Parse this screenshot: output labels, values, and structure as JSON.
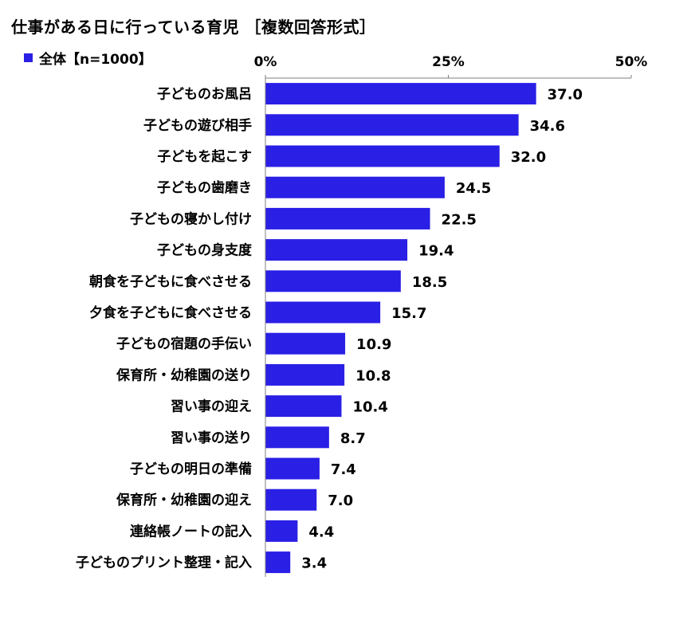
{
  "title": "仕事がある日に行っている育児 ［複数回答形式］",
  "legend": {
    "label": "全体【n=1000】"
  },
  "colors": {
    "bar": "#2A1FE5",
    "axis": "#7f7f7f",
    "text": "#000000"
  },
  "chart_data": {
    "type": "bar",
    "orientation": "horizontal",
    "title": "仕事がある日に行っている育児 ［複数回答形式］",
    "xlim": [
      0,
      50
    ],
    "ticks": [
      {
        "value": 0,
        "label": "0%"
      },
      {
        "value": 25,
        "label": "25%"
      },
      {
        "value": 50,
        "label": "50%"
      }
    ],
    "tick_position": "top",
    "grid": false,
    "legend_position": "top-left",
    "series": [
      {
        "name": "全体【n=1000】",
        "values": [
          37.0,
          34.6,
          32.0,
          24.5,
          22.5,
          19.4,
          18.5,
          15.7,
          10.9,
          10.8,
          10.4,
          8.7,
          7.4,
          7.0,
          4.4,
          3.4
        ],
        "labels": [
          "37.0",
          "34.6",
          "32.0",
          "24.5",
          "22.5",
          "19.4",
          "18.5",
          "15.7",
          "10.9",
          "10.8",
          "10.4",
          "8.7",
          "7.4",
          "7.0",
          "4.4",
          "3.4"
        ]
      }
    ],
    "categories": [
      "子どものお風呂",
      "子どもの遊び相手",
      "子どもを起こす",
      "子どもの歯磨き",
      "子どもの寝かし付け",
      "子どもの身支度",
      "朝食を子どもに食べさせる",
      "夕食を子どもに食べさせる",
      "子どもの宿題の手伝い",
      "保育所・幼稚園の送り",
      "習い事の迎え",
      "習い事の送り",
      "子どもの明日の準備",
      "保育所・幼稚園の迎え",
      "連絡帳ノートの記入",
      "子どものプリント整理・記入"
    ]
  }
}
